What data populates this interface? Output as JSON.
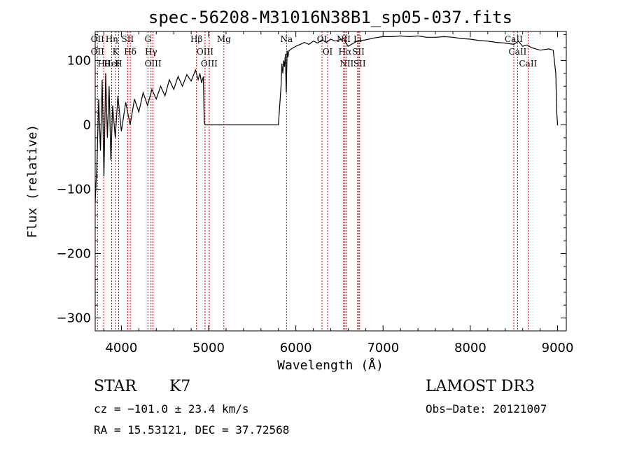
{
  "chart_data": {
    "type": "line",
    "title": "spec-56208-M31016N38B1_sp05-037.fits",
    "xlabel": "Wavelength (Å)",
    "ylabel": "Flux (relative)",
    "xlim": [
      3700,
      9100
    ],
    "ylim": [
      -320,
      145
    ],
    "xticks": [
      4000,
      5000,
      6000,
      7000,
      8000,
      9000
    ],
    "yticks": [
      -300,
      -200,
      -100,
      0,
      100
    ],
    "series": [
      {
        "name": "flux",
        "x": [
          3700,
          3720,
          3740,
          3760,
          3780,
          3800,
          3820,
          3840,
          3860,
          3880,
          3900,
          3930,
          3960,
          4000,
          4050,
          4100,
          4150,
          4200,
          4250,
          4300,
          4350,
          4400,
          4450,
          4500,
          4550,
          4600,
          4650,
          4700,
          4750,
          4800,
          4850,
          4880,
          4900,
          4920,
          4940,
          4950,
          4960,
          5000,
          5200,
          5400,
          5600,
          5800,
          5830,
          5840,
          5850,
          5860,
          5870,
          5880,
          5890,
          5900,
          5910,
          5920,
          5950,
          6000,
          6050,
          6100,
          6150,
          6200,
          6250,
          6300,
          6350,
          6400,
          6450,
          6500,
          6550,
          6570,
          6600,
          6650,
          6700,
          6750,
          6800,
          6900,
          7000,
          7100,
          7200,
          7300,
          7400,
          7500,
          7600,
          7700,
          7800,
          7900,
          8000,
          8100,
          8200,
          8300,
          8400,
          8500,
          8550,
          8600,
          8650,
          8700,
          8750,
          8800,
          8850,
          8900,
          8950,
          8980,
          8990,
          9000,
          9005
        ],
        "values": [
          -120,
          -60,
          40,
          -40,
          70,
          -80,
          80,
          -20,
          60,
          -55,
          30,
          -20,
          45,
          -10,
          35,
          0,
          40,
          20,
          50,
          30,
          55,
          40,
          60,
          45,
          70,
          55,
          75,
          60,
          78,
          68,
          85,
          70,
          80,
          65,
          75,
          5,
          0,
          0,
          0,
          0,
          0,
          0,
          60,
          95,
          80,
          100,
          90,
          110,
          50,
          115,
          105,
          115,
          118,
          122,
          125,
          128,
          125,
          130,
          127,
          132,
          128,
          133,
          130,
          132,
          134,
          128,
          122,
          126,
          130,
          131,
          132,
          135,
          137,
          137,
          138,
          137,
          138,
          136,
          136,
          137,
          136,
          134,
          133,
          131,
          130,
          128,
          127,
          125,
          130,
          122,
          124,
          120,
          118,
          116,
          117,
          118,
          116,
          80,
          20,
          0,
          0
        ]
      }
    ],
    "line_markers": [
      {
        "wl": 3726,
        "labels": [
          "OII",
          "OII"
        ]
      },
      {
        "wl": 3798,
        "labels": [
          "Hθ"
        ]
      },
      {
        "wl": 3889,
        "labels": [
          "Hη",
          "HeI"
        ]
      },
      {
        "wl": 3934,
        "labels": [
          "K"
        ]
      },
      {
        "wl": 3968,
        "labels": [
          "H"
        ]
      },
      {
        "wl": 4072,
        "labels": [
          "SII"
        ]
      },
      {
        "wl": 4102,
        "labels": [
          "Hδ"
        ]
      },
      {
        "wl": 4304,
        "labels": [
          "G"
        ]
      },
      {
        "wl": 4340,
        "labels": [
          "Hγ"
        ]
      },
      {
        "wl": 4363,
        "labels": [
          "OIII"
        ]
      },
      {
        "wl": 4861,
        "labels": [
          "Hβ"
        ]
      },
      {
        "wl": 4959,
        "labels": [
          "OIII"
        ]
      },
      {
        "wl": 5007,
        "labels": [
          "OIII"
        ]
      },
      {
        "wl": 5175,
        "labels": [
          "Mg"
        ]
      },
      {
        "wl": 5893,
        "labels": [
          "Na"
        ]
      },
      {
        "wl": 6300,
        "labels": [
          "OI"
        ]
      },
      {
        "wl": 6364,
        "labels": [
          "OI"
        ]
      },
      {
        "wl": 6548,
        "labels": [
          "NII"
        ]
      },
      {
        "wl": 6563,
        "labels": [
          "Hα"
        ]
      },
      {
        "wl": 6583,
        "labels": [
          "NII"
        ]
      },
      {
        "wl": 6708,
        "labels": [
          "Li"
        ]
      },
      {
        "wl": 6717,
        "labels": [
          "SII"
        ]
      },
      {
        "wl": 6731,
        "labels": [
          "SII"
        ]
      },
      {
        "wl": 8498,
        "labels": [
          "CaII"
        ]
      },
      {
        "wl": 8542,
        "labels": [
          "CaII"
        ]
      },
      {
        "wl": 8662,
        "labels": [
          "CaII"
        ]
      }
    ]
  },
  "info": {
    "class": "STAR",
    "subclass": "K7",
    "survey": "LAMOST DR3",
    "cz": "cz = −101.0 ± 23.4 km/s",
    "obs_date": "Obs−Date: 20121007",
    "coords": "RA =  15.53121, DEC =  37.72568"
  },
  "colors": {
    "marker": "#cc0000",
    "spectrum": "#000000"
  }
}
